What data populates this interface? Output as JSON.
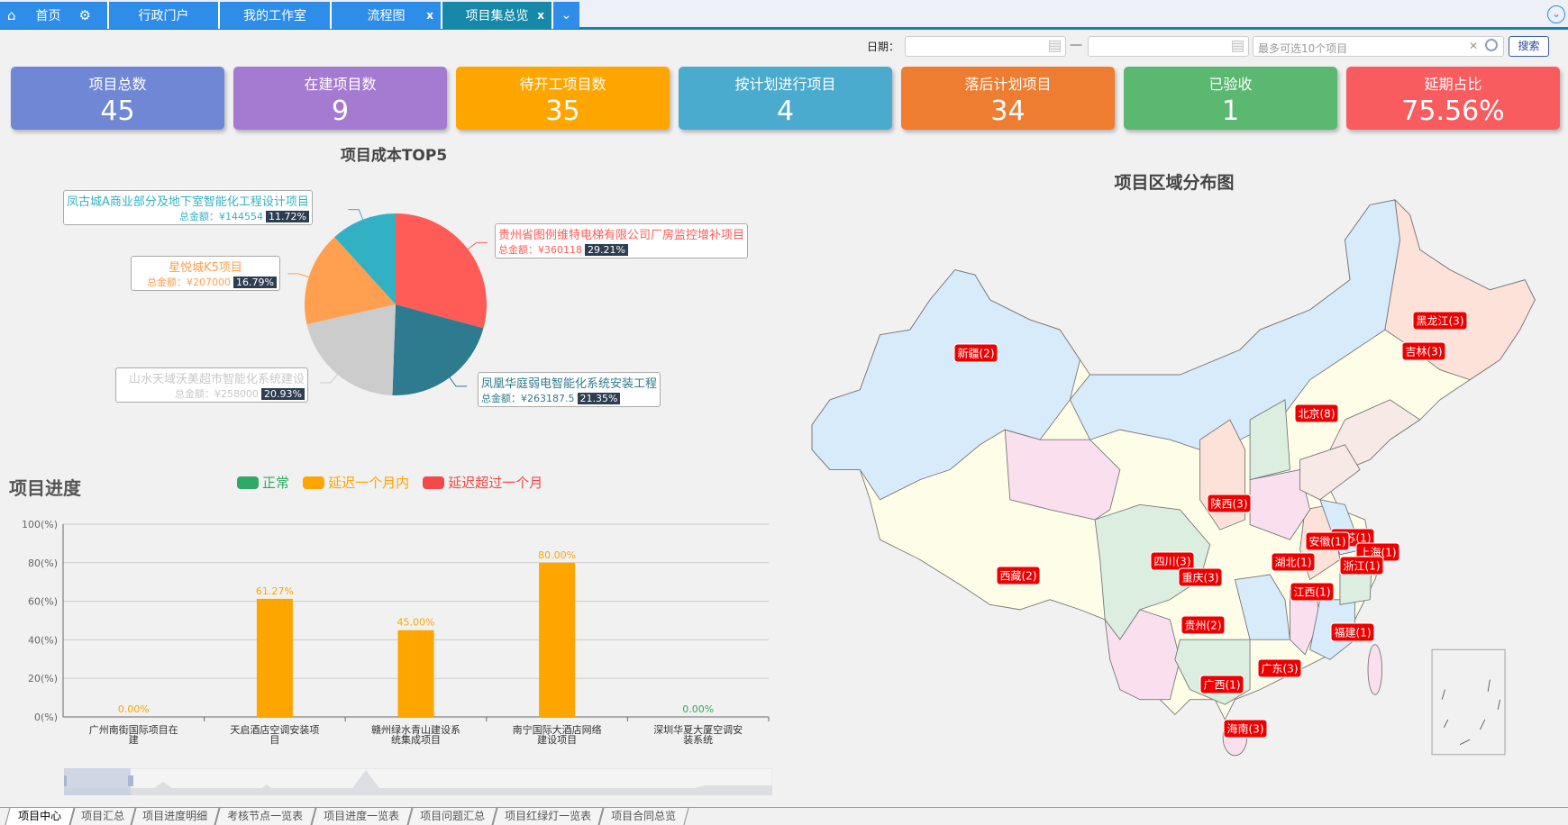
{
  "nav": {
    "home": "首页",
    "tabs": [
      {
        "label": "行政门户"
      },
      {
        "label": "我的工作室"
      },
      {
        "label": "流程图",
        "closable": true
      },
      {
        "label": "项目集总览",
        "closable": true,
        "active": true
      }
    ],
    "close": "x"
  },
  "filter": {
    "date_label": "日期：",
    "dash": "—",
    "project_placeholder": "最多可选10个项目",
    "clear": "✕",
    "search_button": "搜索"
  },
  "cards": [
    {
      "title": "项目总数",
      "value": "45",
      "color": "#7087d6"
    },
    {
      "title": "在建项目数",
      "value": "9",
      "color": "#a57bd1"
    },
    {
      "title": "待开工项目数",
      "value": "35",
      "color": "#ffa500"
    },
    {
      "title": "按计划进行项目",
      "value": "4",
      "color": "#4aabce"
    },
    {
      "title": "落后计划项目",
      "value": "34",
      "color": "#ee7d32"
    },
    {
      "title": "已验收",
      "value": "1",
      "color": "#5bb870"
    },
    {
      "title": "延期占比",
      "value": "75.56%",
      "color": "#f95c5f"
    }
  ],
  "pie": {
    "title": "项目成本TOP5",
    "amount_prefix": "总金额：¥",
    "chart_data": {
      "type": "pie",
      "slices": [
        {
          "name": "贵州省图例维特电梯有限公司厂房监控增补项目",
          "value": 360118,
          "percent": "29.21%",
          "color": "#ff5b57"
        },
        {
          "name": "凤凰华庭弱电智能化系统安装工程",
          "value": 263187.5,
          "percent": "21.35%",
          "color": "#2e7b8f"
        },
        {
          "name": "山水天域沃美超市智能化系统建设",
          "value": 258000,
          "percent": "20.93%",
          "color": "#cccccc"
        },
        {
          "name": "星悦城K5项目",
          "value": 207000,
          "percent": "16.79%",
          "color": "#ff9f4f"
        },
        {
          "name": "凤古城A商业部分及地下室智能化工程设计项目",
          "value": 144554,
          "percent": "11.72%",
          "color": "#33b1c4"
        }
      ]
    }
  },
  "bar": {
    "title": "项目进度",
    "legend": [
      {
        "name": "正常",
        "color": "#2eaa66"
      },
      {
        "name": "延迟一个月内",
        "color": "#ffa500"
      },
      {
        "name": "延迟超过一个月",
        "color": "#f44747"
      }
    ],
    "chart_data": {
      "type": "bar",
      "categories": [
        "广州南街国际项目在建",
        "天启酒店空调安装项目",
        "赣州绿水青山建设系统集成项目",
        "南宁国际大酒店网络建设项目",
        "深圳华夏大厦空调安装系统"
      ],
      "category_lines": [
        [
          "广州南街国际项目在",
          "建"
        ],
        [
          "天启酒店空调安装项",
          "目"
        ],
        [
          "赣州绿水青山建设系",
          "统集成项目"
        ],
        [
          "南宁国际大酒店网络",
          "建设项目"
        ],
        [
          "深圳华夏大厦空调安",
          "装系统"
        ]
      ],
      "values": [
        0,
        61.27,
        45,
        80,
        0
      ],
      "labels": [
        "0.00%",
        "61.27%",
        "45.00%",
        "80.00%",
        "0.00%"
      ],
      "status": [
        "延迟一个月内",
        "延迟一个月内",
        "延迟一个月内",
        "延迟一个月内",
        "正常"
      ],
      "yticks": [
        "0(%)",
        "20(%)",
        "40(%)",
        "60(%)",
        "80(%)",
        "100(%)"
      ],
      "ylim": [
        0,
        100
      ],
      "grid": true,
      "legend": "top"
    }
  },
  "map": {
    "title": "项目区域分布图",
    "regions": [
      {
        "label": "新疆(2)"
      },
      {
        "label": "黑龙江(3)"
      },
      {
        "label": "吉林(3)"
      },
      {
        "label": "北京(8)"
      },
      {
        "label": "陕西(3)"
      },
      {
        "label": "江苏(1)"
      },
      {
        "label": "安徽(1)"
      },
      {
        "label": "上海(1)"
      },
      {
        "label": "四川(3)"
      },
      {
        "label": "湖北(1)"
      },
      {
        "label": "浙江(1)"
      },
      {
        "label": "重庆(3)"
      },
      {
        "label": "西藏(2)"
      },
      {
        "label": "江西(1)"
      },
      {
        "label": "贵州(2)"
      },
      {
        "label": "福建(1)"
      },
      {
        "label": "广东(3)"
      },
      {
        "label": "广西(1)"
      },
      {
        "label": "海南(3)"
      }
    ]
  },
  "bottom_tabs": [
    "项目中心",
    "项目汇总",
    "项目进度明细",
    "考核节点一览表",
    "项目进度一览表",
    "项目问题汇总",
    "项目红绿灯一览表",
    "项目合同总览"
  ]
}
